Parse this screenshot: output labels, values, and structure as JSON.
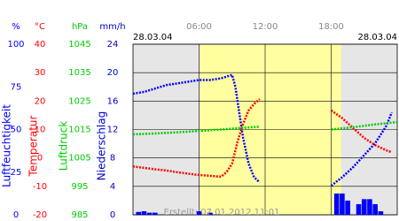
{
  "chart_data": {
    "type": "multi-axis-line",
    "xlim": [
      0,
      24
    ],
    "xticks": [
      {
        "value": 6,
        "label": "06:00"
      },
      {
        "value": 12,
        "label": "12:00"
      },
      {
        "value": 18,
        "label": "18:00"
      }
    ],
    "date_left": "28.03.04",
    "date_right": "28.03.04",
    "daylight": [
      6.1,
      18.9
    ],
    "footer": "Erstellt: 07.01.2012 11:01",
    "grid": true,
    "axes": [
      {
        "unit": "%",
        "title": "Luftfeuchtigkeit",
        "color": "#0000ff",
        "ylim": [
          0,
          100
        ],
        "yticks": [
          0,
          25,
          50,
          75,
          100
        ]
      },
      {
        "unit": "°C",
        "title": "Temperatur",
        "color": "#ff0000",
        "ylim": [
          -20,
          40
        ],
        "yticks": [
          -20,
          -10,
          0,
          10,
          20,
          30,
          40
        ]
      },
      {
        "unit": "hPa",
        "title": "Luftdruck",
        "color": "#00cc00",
        "ylim": [
          985,
          1045
        ],
        "yticks": [
          985,
          995,
          1005,
          1015,
          1025,
          1035,
          1045
        ]
      },
      {
        "unit": "mm/h",
        "title": "Niederschlag",
        "color": "#0000cc",
        "ylim": [
          0,
          24
        ],
        "yticks": [
          0,
          4,
          8,
          12,
          16,
          20,
          24
        ]
      }
    ],
    "series": [
      {
        "type": "line",
        "axis": 0,
        "color": "#0000ff",
        "x": [
          0,
          1,
          2,
          3,
          4,
          5,
          6,
          7,
          8,
          8.5,
          9,
          9.3,
          9.6,
          10,
          10.5,
          11,
          11.5,
          17.5,
          18,
          19,
          20,
          21,
          22,
          23,
          23.5
        ],
        "values": [
          71,
          72,
          74,
          76,
          77,
          78,
          79,
          79,
          80,
          81,
          82,
          75,
          62,
          45,
          30,
          22,
          19,
          null,
          17,
          22,
          28,
          35,
          42,
          52,
          60
        ]
      },
      {
        "type": "line",
        "axis": 1,
        "color": "#ff0000",
        "x": [
          0,
          1,
          2,
          3,
          4,
          5,
          6,
          7,
          8,
          8.5,
          9,
          9.5,
          10,
          10.5,
          11,
          11.5,
          17.5,
          18,
          19,
          20,
          21,
          22,
          23,
          23.5
        ],
        "values": [
          -3,
          -3.5,
          -4,
          -4.4,
          -5,
          -5.5,
          -6,
          -6.3,
          -6.6,
          -5,
          -2,
          5.8,
          12,
          16.7,
          19,
          20.7,
          null,
          16.7,
          14,
          10.5,
          7,
          4.5,
          2.7,
          2
        ]
      },
      {
        "type": "line",
        "axis": 2,
        "color": "#00cc00",
        "x": [
          0,
          2,
          4,
          6,
          8,
          10,
          11.5,
          17.5,
          18,
          20,
          22,
          24
        ],
        "values": [
          1013.3,
          1013.6,
          1014,
          1014.5,
          1015,
          1015.6,
          1016,
          null,
          1015,
          1015.8,
          1016.8,
          1017.6
        ]
      },
      {
        "type": "bar",
        "axis": 3,
        "color": "#0000ff",
        "x": [
          0.5,
          1,
          1.5,
          2,
          6,
          7,
          18.5,
          19,
          19.5,
          20.5,
          21,
          21.5,
          22,
          22.5
        ],
        "values": [
          0.4,
          0.5,
          0.3,
          0.3,
          0.5,
          0.3,
          3,
          3,
          2,
          1.5,
          2.2,
          2.2,
          1.5,
          0.5
        ]
      }
    ]
  }
}
